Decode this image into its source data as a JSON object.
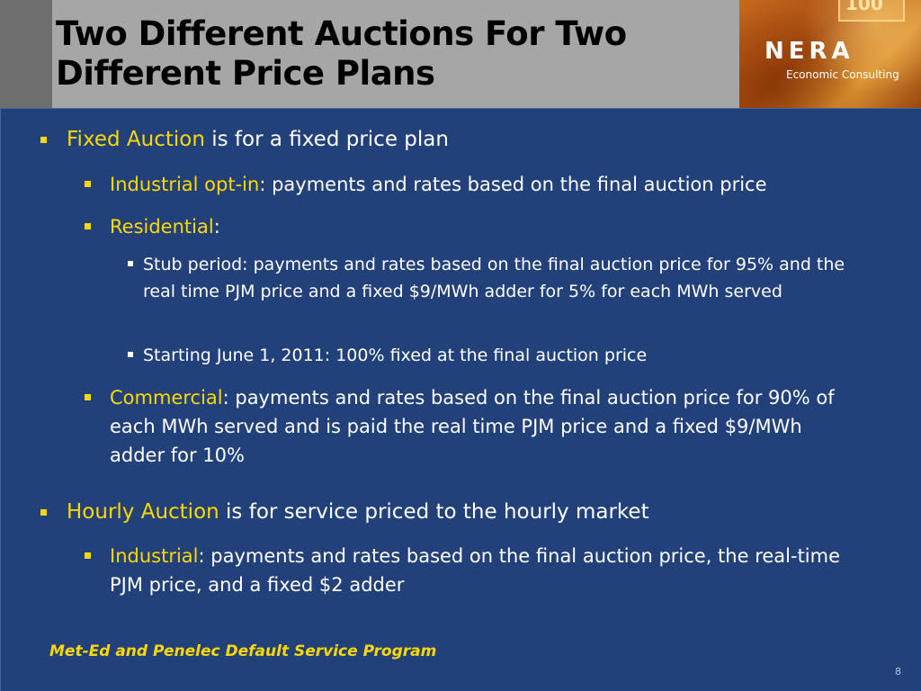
{
  "title": "Two Different Auctions For Two Different Price Plans",
  "logo": {
    "name": "NERA",
    "subtitle": "Economic Consulting",
    "number": "100"
  },
  "bullets": {
    "fixed": {
      "label": "Fixed Auction",
      "text": " is for a fixed price plan"
    },
    "industrial_optin": {
      "label": "Industrial opt-in",
      "text": ":  payments and rates based on the final auction price"
    },
    "residential": {
      "label": "Residential",
      "text": ":"
    },
    "stub": {
      "text": "Stub period: payments and rates based on the final auction price for 95% and the real time PJM price and a fixed $9/MWh adder for 5% for each MWh served"
    },
    "starting": {
      "text": "Starting June 1, 2011: 100% fixed at the final auction price"
    },
    "commercial": {
      "label": "Commercial",
      "text": ": payments and rates based on the final auction price for 90% of each MWh served and is paid the real time PJM price and a fixed $9/MWh adder for 10%"
    },
    "hourly": {
      "label": "Hourly Auction",
      "text": " is for service priced to the hourly market"
    },
    "industrial": {
      "label": "Industrial",
      "text": ":  payments and rates based on the final auction price, the real-time PJM price, and a fixed $2 adder"
    }
  },
  "footer": "Met-Ed and Penelec Default Service Program",
  "page_number": "8"
}
